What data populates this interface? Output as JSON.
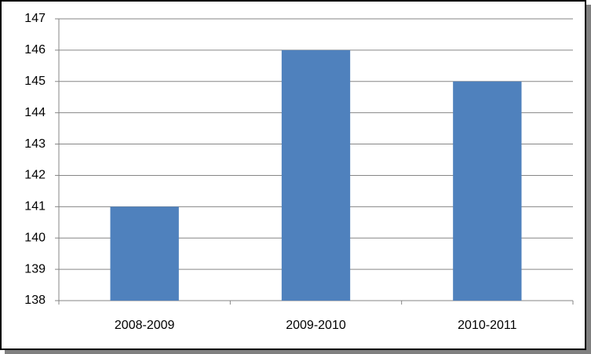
{
  "chart_data": {
    "type": "bar",
    "categories": [
      "2008-2009",
      "2009-2010",
      "2010-2011"
    ],
    "values": [
      141,
      146,
      145
    ],
    "color": "#4f81bd",
    "ylim": [
      138,
      147
    ],
    "yticks": [
      138,
      139,
      140,
      141,
      142,
      143,
      144,
      145,
      146,
      147
    ],
    "grid": true
  }
}
